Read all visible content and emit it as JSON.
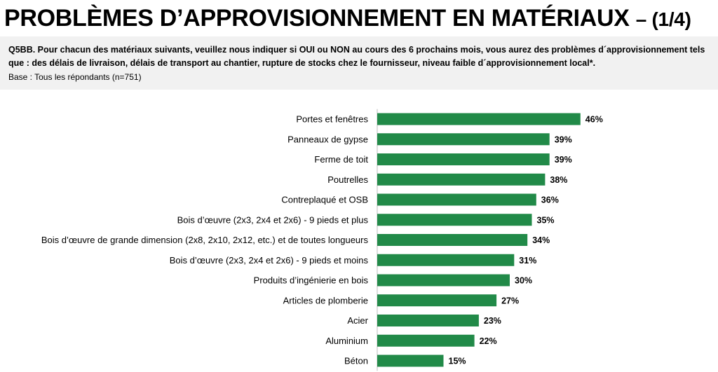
{
  "header": {
    "title": "PROBLÈMES D’APPROVISIONNEMENT EN MATÉRIAUX",
    "title_suffix": "– (1/4)"
  },
  "question": {
    "text": "Q5BB. Pour chacun des matériaux suivants, veuillez nous indiquer si OUI ou NON au cours des 6 prochains mois, vous aurez des problèmes d´approvisionnement tels que : des délais de livraison, délais de transport au chantier, rupture de stocks chez le fournisseur, niveau faible d´approvisionnement local*.",
    "base": "Base : Tous les répondants (n=751)"
  },
  "chart_data": {
    "type": "bar",
    "orientation": "horizontal",
    "categories": [
      "Portes et fenêtres",
      "Panneaux de gypse",
      "Ferme de toit",
      "Poutrelles",
      "Contreplaqué et OSB",
      "Bois d’œuvre (2x3, 2x4 et 2x6) - 9 pieds et plus",
      "Bois d’œuvre de grande dimension (2x8, 2x10, 2x12, etc.) et de toutes longueurs",
      "Bois d’œuvre (2x3, 2x4 et 2x6) - 9 pieds et moins",
      "Produits d’ingénierie en bois",
      "Articles de plomberie",
      "Acier",
      "Aluminium",
      "Béton"
    ],
    "values": [
      46,
      39,
      39,
      38,
      36,
      35,
      34,
      31,
      30,
      27,
      23,
      22,
      15
    ],
    "value_labels": [
      "46%",
      "39%",
      "39%",
      "38%",
      "36%",
      "35%",
      "34%",
      "31%",
      "30%",
      "27%",
      "23%",
      "22%",
      "15%"
    ],
    "unit": "%",
    "bar_color": "#218a48",
    "xlim": [
      0,
      100
    ],
    "grid": false,
    "legend": "none"
  }
}
